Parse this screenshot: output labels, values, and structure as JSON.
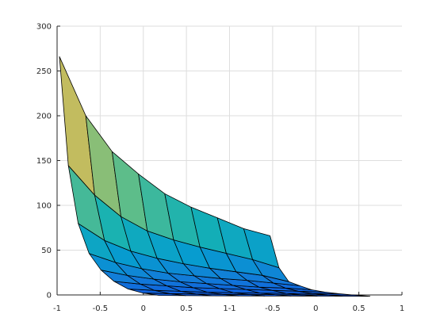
{
  "chart_data": {
    "type": "surface",
    "title": "",
    "xlabel": "",
    "ylabel": "",
    "grid": true,
    "colormap": "parula",
    "x_axis_tick_labels": [
      "-1",
      "-0.5",
      "0",
      "0.5",
      "1-1",
      "-0.5",
      "0",
      "0.5",
      "1"
    ],
    "y_axis": {
      "ylim": [
        0,
        300
      ],
      "ticks": [
        0,
        50,
        100,
        150,
        200,
        250,
        300
      ]
    },
    "x_grid": [
      -1.0,
      -0.75,
      -0.5,
      -0.25,
      0.0,
      0.25,
      0.5,
      0.75,
      1.0
    ],
    "y_grid": [
      -1.0,
      -0.75,
      -0.5,
      -0.25,
      0.0,
      0.25,
      0.5,
      0.75,
      1.0
    ],
    "z_values": [
      [
        266,
        200,
        160,
        135,
        113,
        98,
        86,
        74,
        66
      ],
      [
        145,
        112,
        88,
        72,
        62,
        54,
        47,
        40,
        31
      ],
      [
        81,
        62,
        50,
        42,
        36,
        31,
        27,
        23,
        16
      ],
      [
        48,
        38,
        31,
        26,
        23,
        20,
        18,
        15,
        12
      ],
      [
        30,
        24,
        20,
        17,
        15,
        13,
        11,
        10,
        8
      ],
      [
        18,
        15,
        13,
        11,
        10,
        9,
        8,
        7,
        6
      ],
      [
        10,
        8.5,
        7.5,
        6.5,
        6,
        5.5,
        5.2,
        5,
        4.8
      ],
      [
        6,
        5.5,
        5,
        4.7,
        4.5,
        4.3,
        4.1,
        4,
        3.9
      ],
      [
        4,
        3.8,
        3.6,
        3.5,
        3.4,
        3.3,
        3.2,
        3.1,
        3
      ]
    ]
  }
}
